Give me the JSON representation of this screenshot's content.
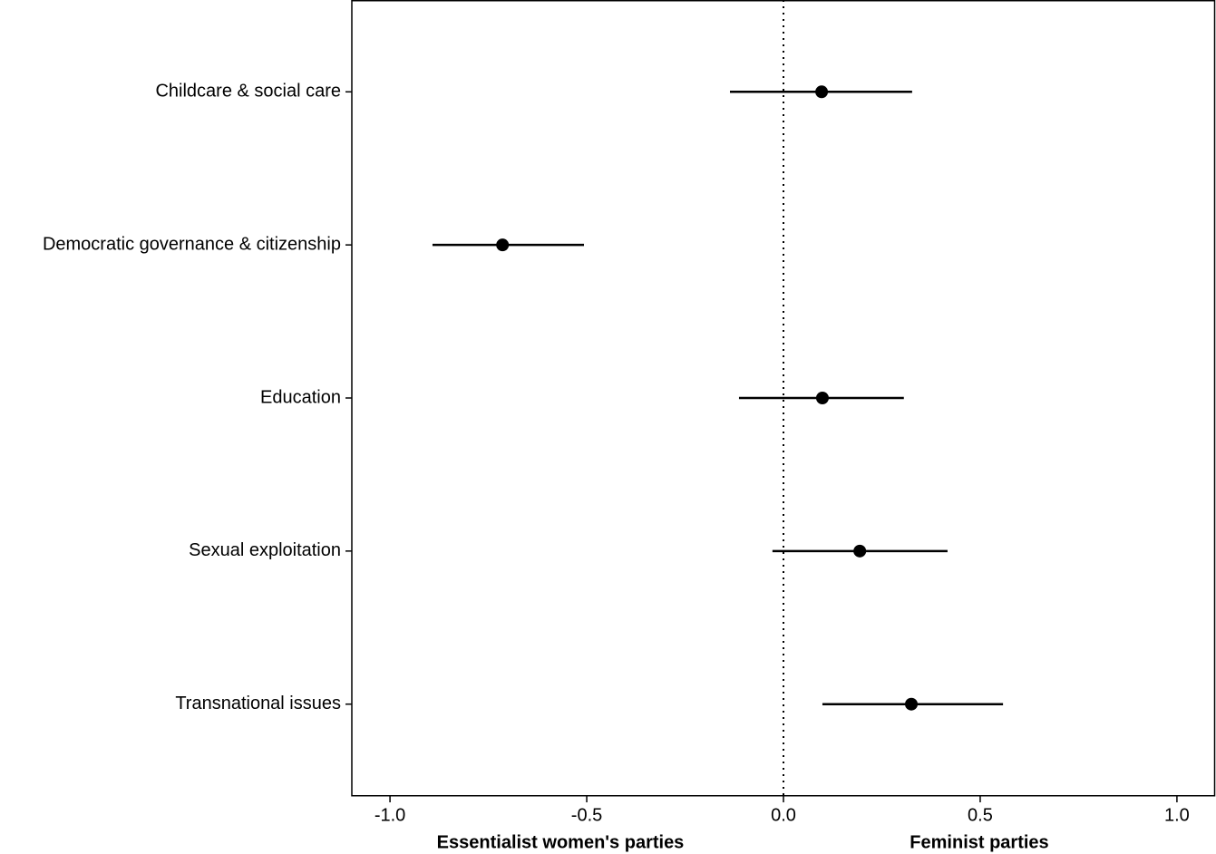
{
  "chart_data": {
    "type": "dotwhisker",
    "categories": [
      "Childcare & social care",
      "Democratic governance & citizenship",
      "Education",
      "Sexual exploitation",
      "Transnational issues"
    ],
    "series": [
      {
        "color": "#000000",
        "values": [
          0.097,
          -0.714,
          0.099,
          0.194,
          0.325
        ],
        "lower": [
          -0.136,
          -0.892,
          -0.113,
          -0.028,
          0.099
        ],
        "upper": [
          0.327,
          -0.507,
          0.306,
          0.417,
          0.558
        ]
      }
    ],
    "xlim": [
      -1.097,
      1.097
    ],
    "xticks": [
      {
        "value": -1,
        "label": "-1.0"
      },
      -0.5,
      {
        "value": 0,
        "label": "0.0"
      },
      0.5,
      {
        "value": 1,
        "label": "1.0"
      }
    ],
    "reference_line": 0,
    "annotations": [
      "Essentialist women's parties",
      "Feminist parties"
    ],
    "grid": false
  }
}
